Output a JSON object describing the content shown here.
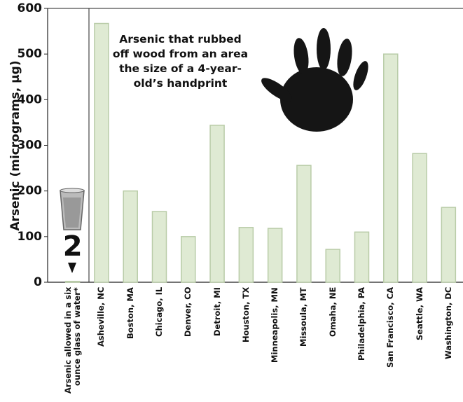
{
  "chart_data": {
    "type": "bar",
    "y_label": "Arsenic (micrograms, µg)",
    "annotation": "Arsenic that rubbed off wood from an area the size of a 4-year-old’s handprint",
    "categories": [
      "Arsenic allowed in a six ounce glass of water*",
      "Asheville, NC",
      "Boston, MA",
      "Chicago, IL",
      "Denver, CO",
      "Detroit, MI",
      "Houston, TX",
      "Minneapolis, MN",
      "Missoula, MT",
      "Omaha, NE",
      "Philadelphia, PA",
      "San Francisco, CA",
      "Seattle, WA",
      "Washington, DC"
    ],
    "values": [
      2,
      567,
      200,
      155,
      100,
      344,
      120,
      118,
      256,
      72,
      110,
      500,
      282,
      164
    ],
    "colors": [
      "#8a8a8a",
      "#dfead3",
      "#dfead3",
      "#dfead3",
      "#dfead3",
      "#dfead3",
      "#dfead3",
      "#dfead3",
      "#dfead3",
      "#dfead3",
      "#dfead3",
      "#dfead3",
      "#dfead3",
      "#dfead3"
    ],
    "ylim": [
      0,
      600
    ],
    "yticks": [
      0,
      100,
      200,
      300,
      400,
      500,
      600
    ]
  }
}
